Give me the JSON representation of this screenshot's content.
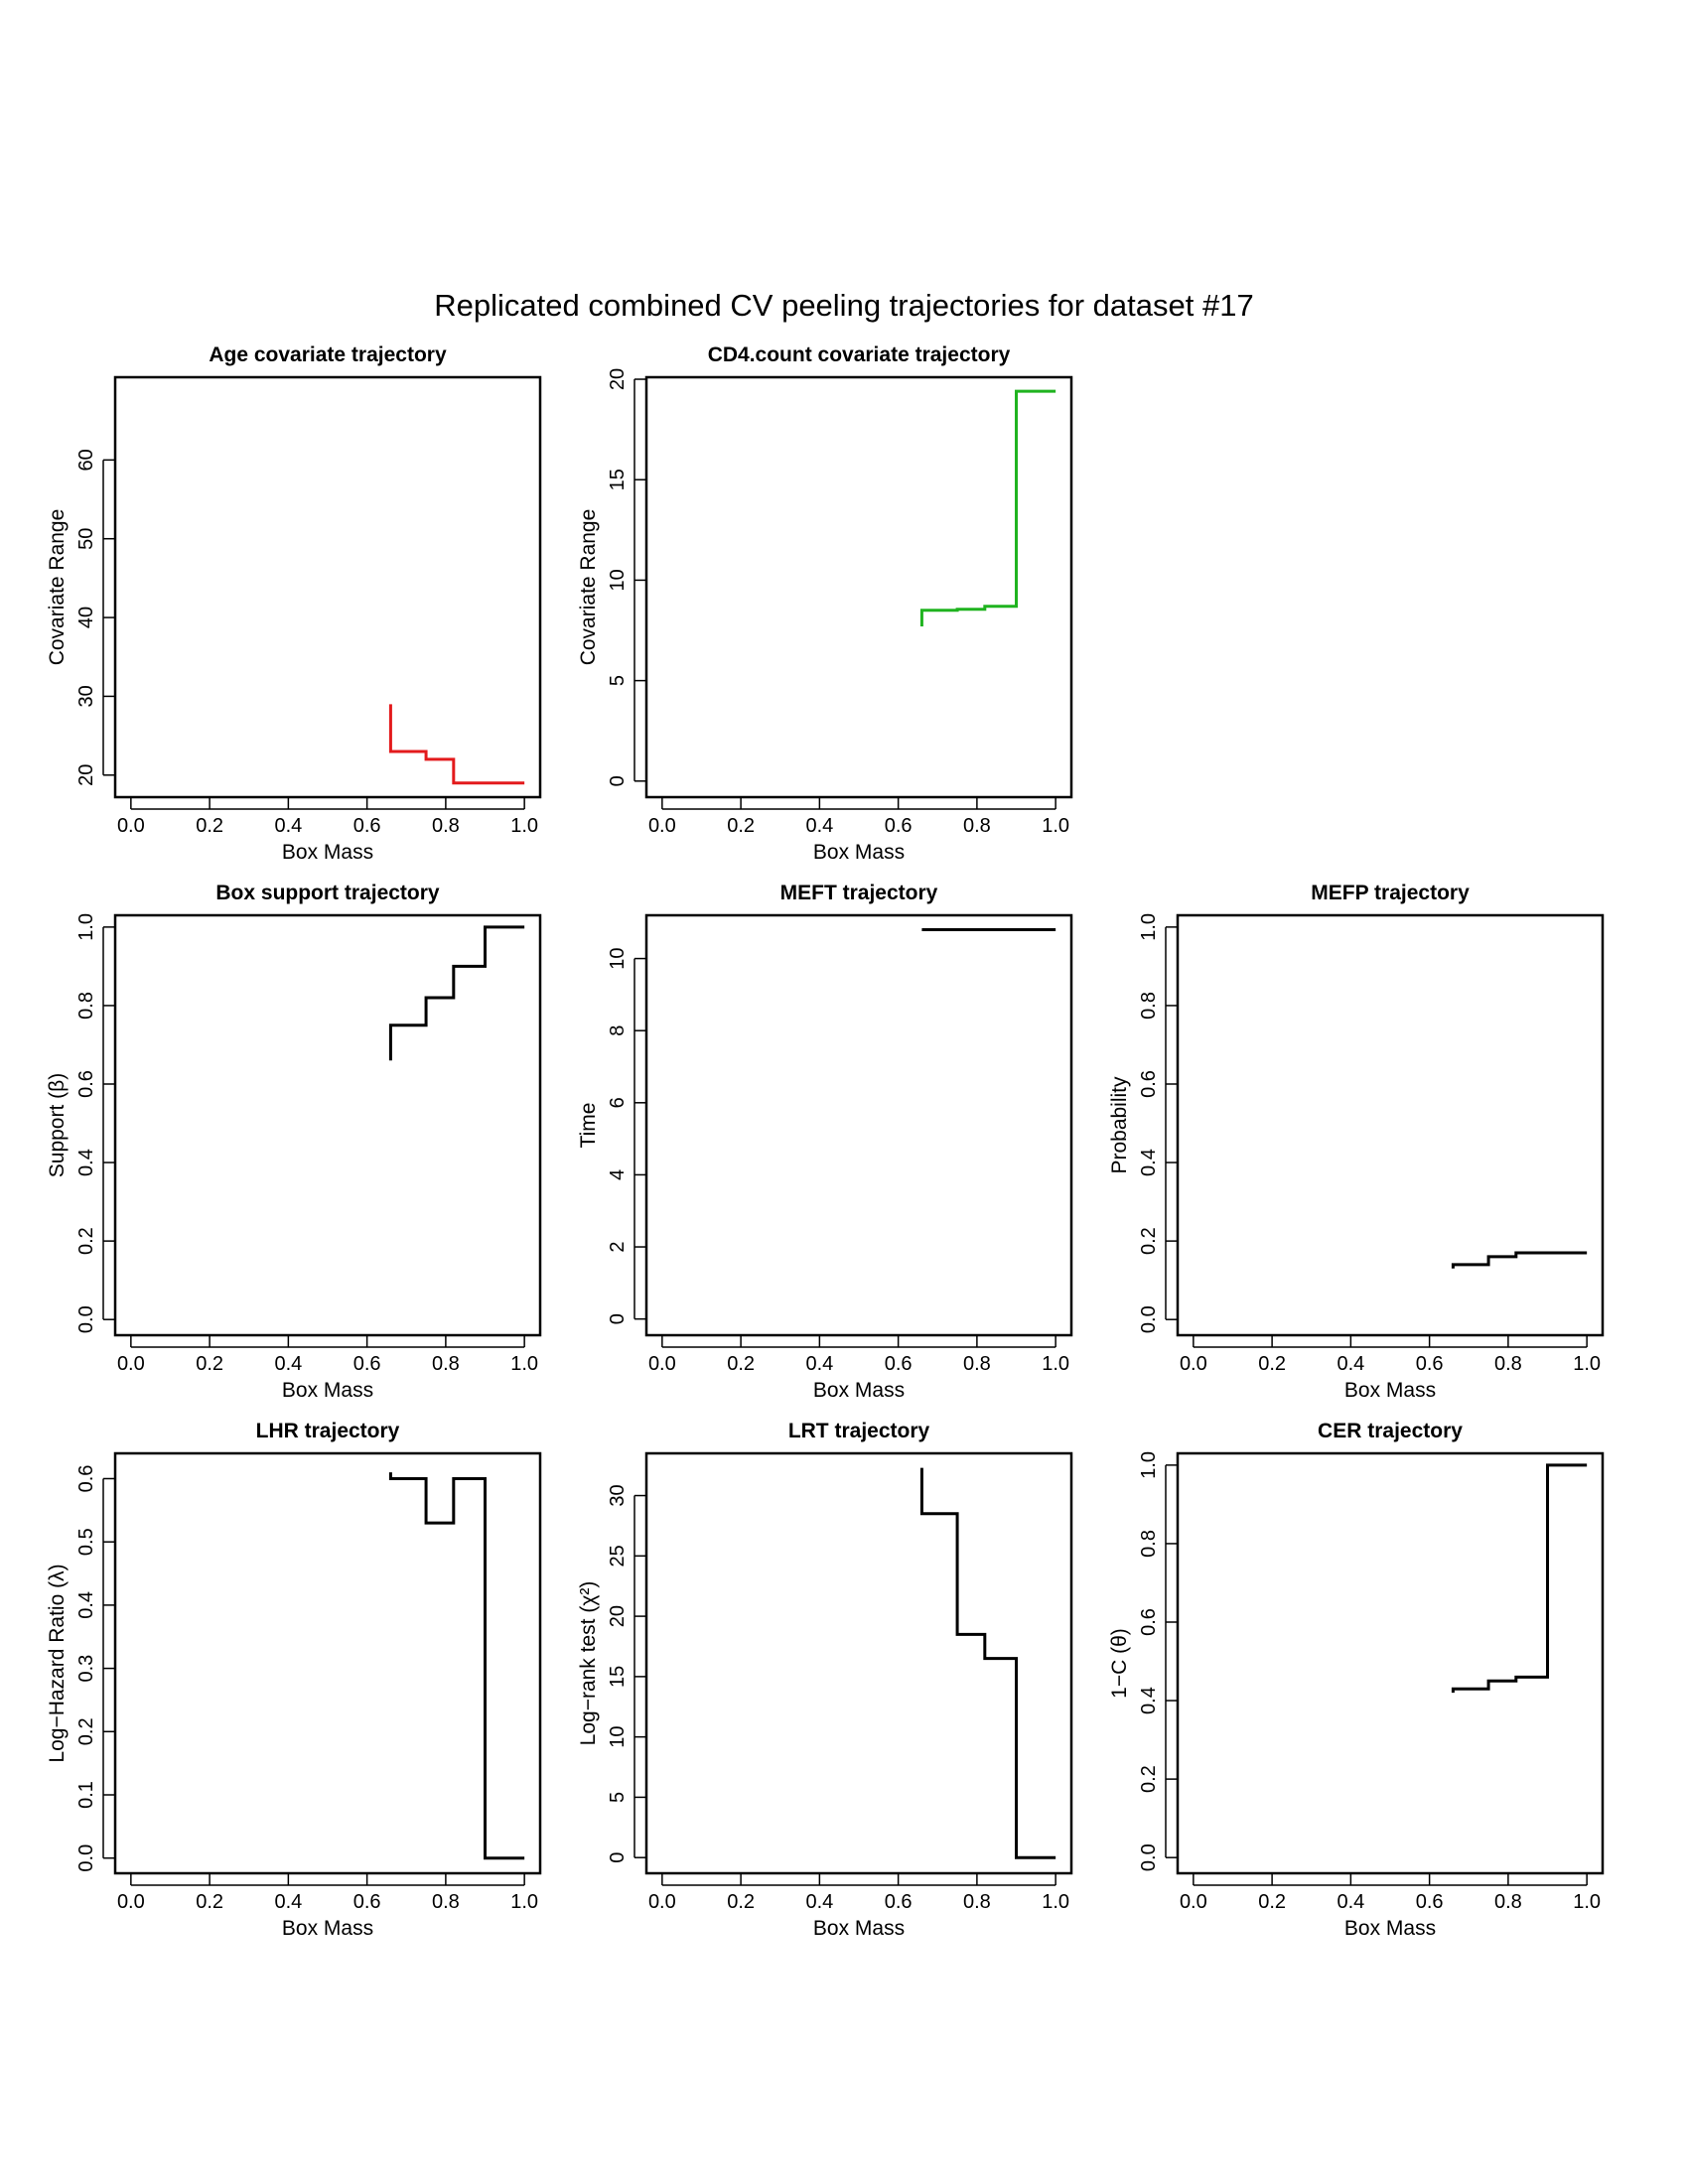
{
  "figure": {
    "title": "Replicated combined CV peeling trajectories for dataset #17"
  },
  "chart_data": [
    {
      "id": "age",
      "type": "line",
      "step": true,
      "title": "Age covariate trajectory",
      "xlabel": "Box Mass",
      "ylabel": "Covariate Range",
      "xlim": [
        -0.04,
        1.04
      ],
      "ylim": [
        17.2,
        70.5
      ],
      "xticks": [
        0.0,
        0.2,
        0.4,
        0.6,
        0.8,
        1.0
      ],
      "xtick_labels": [
        "0.0",
        "0.2",
        "0.4",
        "0.6",
        "0.8",
        "1.0"
      ],
      "yticks": [
        20,
        30,
        40,
        50,
        60
      ],
      "ytick_labels": [
        "20",
        "30",
        "40",
        "50",
        "60"
      ],
      "grid": false,
      "color": "#e31a1c",
      "series": [
        {
          "x": [
            0.66,
            0.66,
            0.75,
            0.82,
            0.9,
            1.0
          ],
          "y": [
            29,
            23,
            22,
            19,
            19,
            19
          ]
        }
      ]
    },
    {
      "id": "cd4",
      "type": "line",
      "step": true,
      "title": "CD4.count covariate trajectory",
      "xlabel": "Box Mass",
      "ylabel": "Covariate Range",
      "xlim": [
        -0.04,
        1.04
      ],
      "ylim": [
        -0.8,
        20.1
      ],
      "xticks": [
        0.0,
        0.2,
        0.4,
        0.6,
        0.8,
        1.0
      ],
      "xtick_labels": [
        "0.0",
        "0.2",
        "0.4",
        "0.6",
        "0.8",
        "1.0"
      ],
      "yticks": [
        0,
        5,
        10,
        15,
        20
      ],
      "ytick_labels": [
        "0",
        "5",
        "10",
        "15",
        "20"
      ],
      "grid": false,
      "color": "#1fb31f",
      "series": [
        {
          "x": [
            0.66,
            0.66,
            0.75,
            0.82,
            0.9,
            1.0
          ],
          "y": [
            7.7,
            8.5,
            8.55,
            8.7,
            19.4,
            19.4
          ]
        }
      ]
    },
    {
      "id": "support",
      "type": "line",
      "step": true,
      "title": "Box support trajectory",
      "xlabel": "Box Mass",
      "ylabel": "Support (β)",
      "xlim": [
        -0.04,
        1.04
      ],
      "ylim": [
        -0.04,
        1.03
      ],
      "xticks": [
        0.0,
        0.2,
        0.4,
        0.6,
        0.8,
        1.0
      ],
      "xtick_labels": [
        "0.0",
        "0.2",
        "0.4",
        "0.6",
        "0.8",
        "1.0"
      ],
      "yticks": [
        0.0,
        0.2,
        0.4,
        0.6,
        0.8,
        1.0
      ],
      "ytick_labels": [
        "0.0",
        "0.2",
        "0.4",
        "0.6",
        "0.8",
        "1.0"
      ],
      "grid": false,
      "color": "#000000",
      "series": [
        {
          "x": [
            0.66,
            0.66,
            0.75,
            0.82,
            0.9,
            1.0
          ],
          "y": [
            0.66,
            0.75,
            0.82,
            0.9,
            1.0,
            1.0
          ]
        }
      ]
    },
    {
      "id": "meft",
      "type": "line",
      "step": true,
      "title": "MEFT trajectory",
      "xlabel": "Box Mass",
      "ylabel": "Time",
      "xlim": [
        -0.04,
        1.04
      ],
      "ylim": [
        -0.45,
        11.2
      ],
      "xticks": [
        0.0,
        0.2,
        0.4,
        0.6,
        0.8,
        1.0
      ],
      "xtick_labels": [
        "0.0",
        "0.2",
        "0.4",
        "0.6",
        "0.8",
        "1.0"
      ],
      "yticks": [
        0,
        2,
        4,
        6,
        8,
        10
      ],
      "ytick_labels": [
        "0",
        "2",
        "4",
        "6",
        "8",
        "10"
      ],
      "grid": false,
      "color": "#000000",
      "series": [
        {
          "x": [
            0.66,
            0.75,
            0.82,
            0.9,
            1.0
          ],
          "y": [
            10.8,
            10.8,
            10.8,
            10.8,
            10.8
          ]
        }
      ]
    },
    {
      "id": "mefp",
      "type": "line",
      "step": true,
      "title": "MEFP trajectory",
      "xlabel": "Box Mass",
      "ylabel": "Probability",
      "xlim": [
        -0.04,
        1.04
      ],
      "ylim": [
        -0.04,
        1.03
      ],
      "xticks": [
        0.0,
        0.2,
        0.4,
        0.6,
        0.8,
        1.0
      ],
      "xtick_labels": [
        "0.0",
        "0.2",
        "0.4",
        "0.6",
        "0.8",
        "1.0"
      ],
      "yticks": [
        0.0,
        0.2,
        0.4,
        0.6,
        0.8,
        1.0
      ],
      "ytick_labels": [
        "0.0",
        "0.2",
        "0.4",
        "0.6",
        "0.8",
        "1.0"
      ],
      "grid": false,
      "color": "#000000",
      "series": [
        {
          "x": [
            0.66,
            0.66,
            0.75,
            0.82,
            0.9,
            1.0
          ],
          "y": [
            0.13,
            0.14,
            0.16,
            0.17,
            0.17,
            0.17
          ]
        }
      ]
    },
    {
      "id": "lhr",
      "type": "line",
      "step": true,
      "title": "LHR trajectory",
      "xlabel": "Box Mass",
      "ylabel": "Log−Hazard Ratio (λ)",
      "xlim": [
        -0.04,
        1.04
      ],
      "ylim": [
        -0.024,
        0.64
      ],
      "xticks": [
        0.0,
        0.2,
        0.4,
        0.6,
        0.8,
        1.0
      ],
      "xtick_labels": [
        "0.0",
        "0.2",
        "0.4",
        "0.6",
        "0.8",
        "1.0"
      ],
      "yticks": [
        0.0,
        0.1,
        0.2,
        0.3,
        0.4,
        0.5,
        0.6
      ],
      "ytick_labels": [
        "0.0",
        "0.1",
        "0.2",
        "0.3",
        "0.4",
        "0.5",
        "0.6"
      ],
      "grid": false,
      "color": "#000000",
      "series": [
        {
          "x": [
            0.66,
            0.66,
            0.75,
            0.82,
            0.9,
            1.0
          ],
          "y": [
            0.61,
            0.6,
            0.53,
            0.6,
            0.0,
            0.0
          ]
        }
      ]
    },
    {
      "id": "lrt",
      "type": "line",
      "step": true,
      "title": "LRT trajectory",
      "xlabel": "Box Mass",
      "ylabel": "Log−rank test (χ²)",
      "xlim": [
        -0.04,
        1.04
      ],
      "ylim": [
        -1.3,
        33.5
      ],
      "xticks": [
        0.0,
        0.2,
        0.4,
        0.6,
        0.8,
        1.0
      ],
      "xtick_labels": [
        "0.0",
        "0.2",
        "0.4",
        "0.6",
        "0.8",
        "1.0"
      ],
      "yticks": [
        0,
        5,
        10,
        15,
        20,
        25,
        30
      ],
      "ytick_labels": [
        "0",
        "5",
        "10",
        "15",
        "20",
        "25",
        "30"
      ],
      "grid": false,
      "color": "#000000",
      "series": [
        {
          "x": [
            0.66,
            0.66,
            0.75,
            0.82,
            0.9,
            1.0
          ],
          "y": [
            32.3,
            28.5,
            18.5,
            16.5,
            0.0,
            0.0
          ]
        }
      ]
    },
    {
      "id": "cer",
      "type": "line",
      "step": true,
      "title": "CER trajectory",
      "xlabel": "Box Mass",
      "ylabel": "1−C (θ)",
      "xlim": [
        -0.04,
        1.04
      ],
      "ylim": [
        -0.04,
        1.03
      ],
      "xticks": [
        0.0,
        0.2,
        0.4,
        0.6,
        0.8,
        1.0
      ],
      "xtick_labels": [
        "0.0",
        "0.2",
        "0.4",
        "0.6",
        "0.8",
        "1.0"
      ],
      "yticks": [
        0.0,
        0.2,
        0.4,
        0.6,
        0.8,
        1.0
      ],
      "ytick_labels": [
        "0.0",
        "0.2",
        "0.4",
        "0.6",
        "0.8",
        "1.0"
      ],
      "grid": false,
      "color": "#000000",
      "series": [
        {
          "x": [
            0.66,
            0.66,
            0.75,
            0.82,
            0.9,
            1.0
          ],
          "y": [
            0.42,
            0.43,
            0.45,
            0.46,
            1.0,
            1.0
          ]
        }
      ]
    }
  ]
}
